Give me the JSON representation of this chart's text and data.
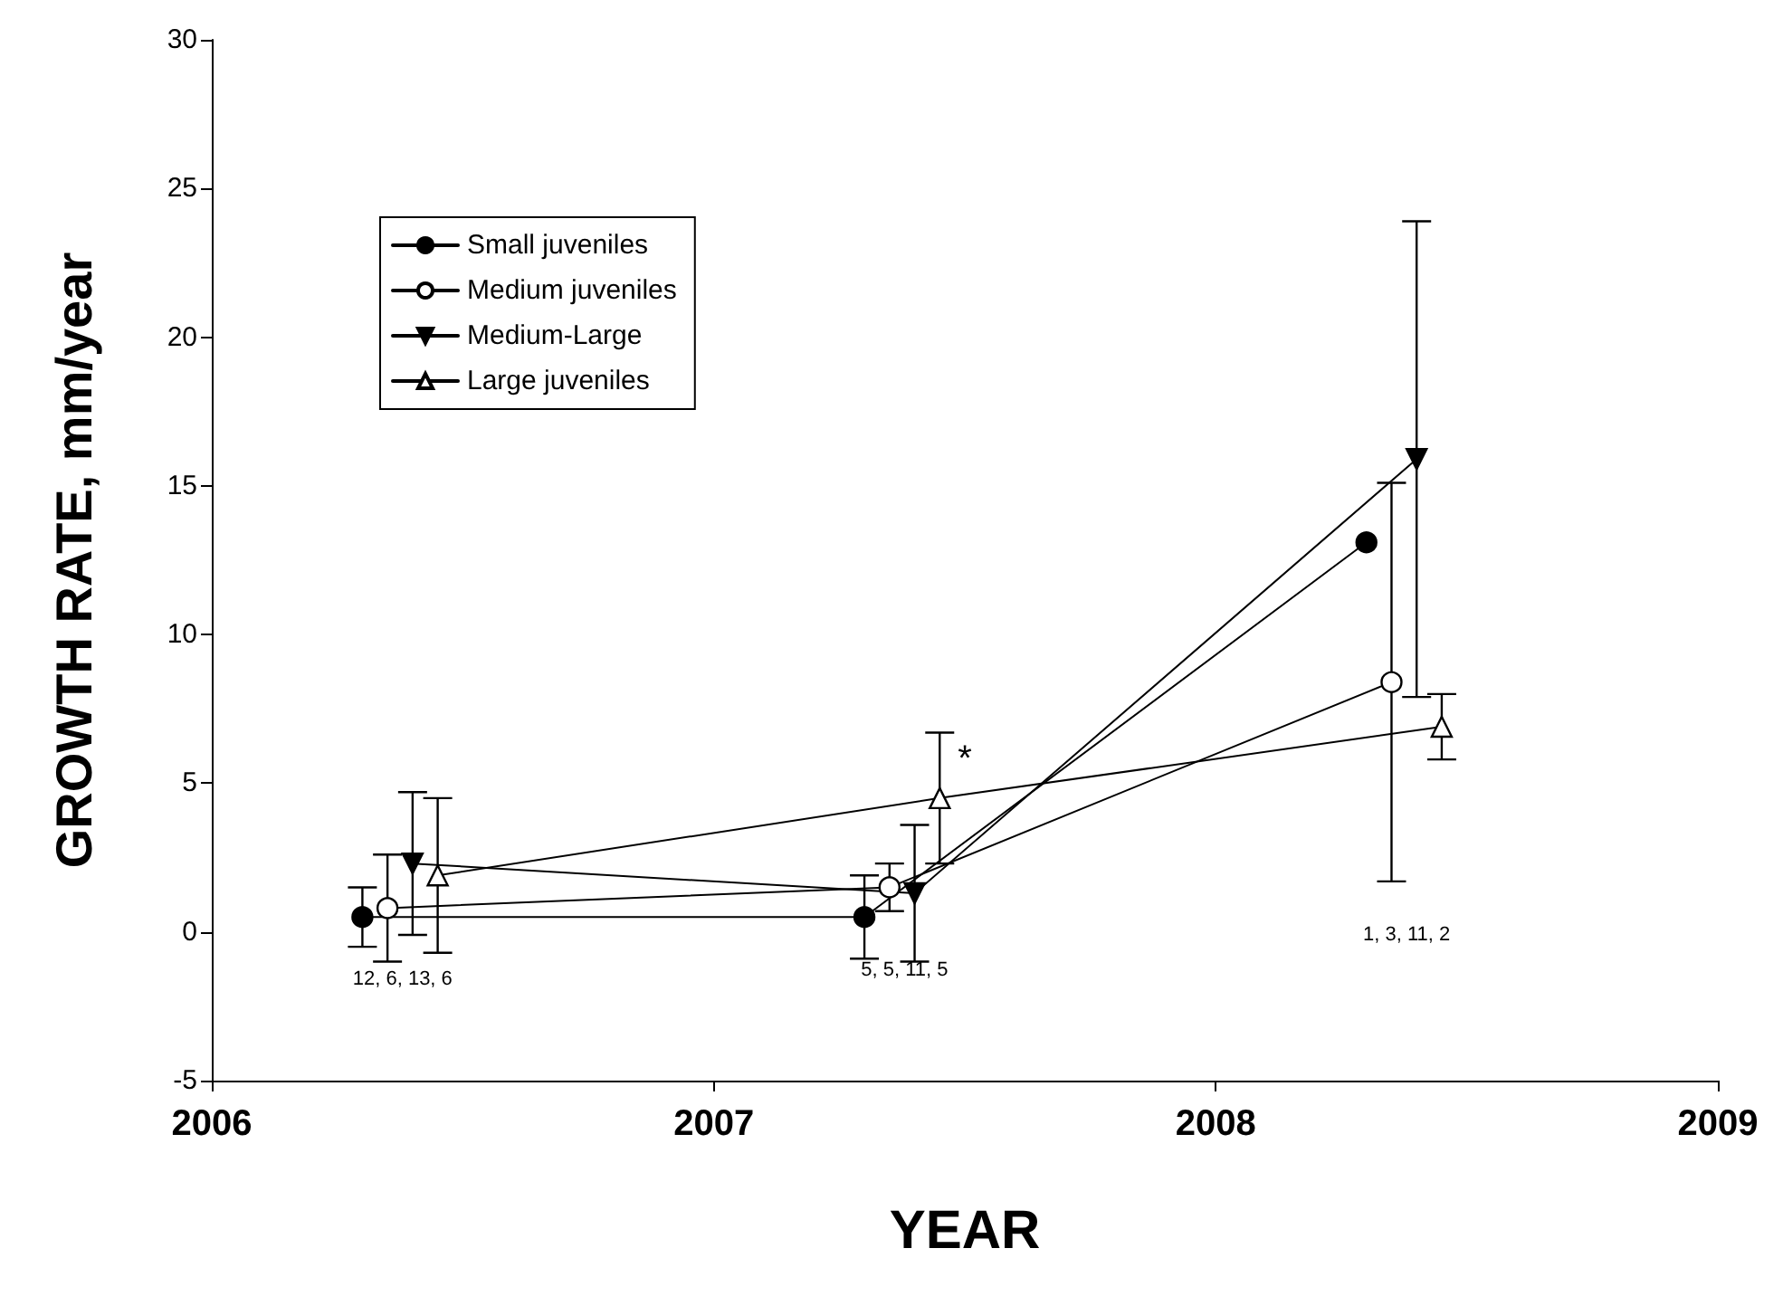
{
  "chart_data": {
    "type": "line",
    "xlabel": "YEAR",
    "ylabel": "GROWTH RATE, mm/year",
    "xlim": [
      2006,
      2009
    ],
    "xticks": [
      2006,
      2007,
      2008,
      2009
    ],
    "ylim": [
      -5,
      30
    ],
    "yticks": [
      -5,
      0,
      5,
      10,
      15,
      20,
      25,
      30
    ],
    "grid": false,
    "legend": "top left",
    "line_style": "solid",
    "series": [
      {
        "name": "Small juveniles",
        "color": "#000000",
        "marker": "circle",
        "x": [
          2006.3,
          2007.3,
          2008.3
        ],
        "values": [
          0.5,
          0.5,
          13.1
        ],
        "errors": [
          1.0,
          1.4,
          null
        ]
      },
      {
        "name": "Medium juveniles",
        "color": "#000000",
        "marker": "circle-open",
        "x": [
          2006.35,
          2007.35,
          2008.35
        ],
        "values": [
          0.8,
          1.5,
          8.4
        ],
        "errors": [
          1.8,
          0.8,
          6.7
        ]
      },
      {
        "name": "Medium-Large",
        "color": "#000000",
        "marker": "triangle-down",
        "x": [
          2006.4,
          2007.4,
          2008.4
        ],
        "values": [
          2.3,
          1.3,
          15.9
        ],
        "errors": [
          2.4,
          2.3,
          8.0
        ]
      },
      {
        "name": "Large juveniles",
        "color": "#000000",
        "marker": "triangle-open",
        "x": [
          2006.45,
          2007.45,
          2008.45
        ],
        "values": [
          1.9,
          4.5,
          6.9
        ],
        "errors": [
          2.6,
          2.2,
          1.1
        ]
      }
    ],
    "annotations": [
      "12, 6, 13, 6",
      "5, 5, 11, 5",
      "1, 3, 11, 2",
      "*"
    ]
  }
}
